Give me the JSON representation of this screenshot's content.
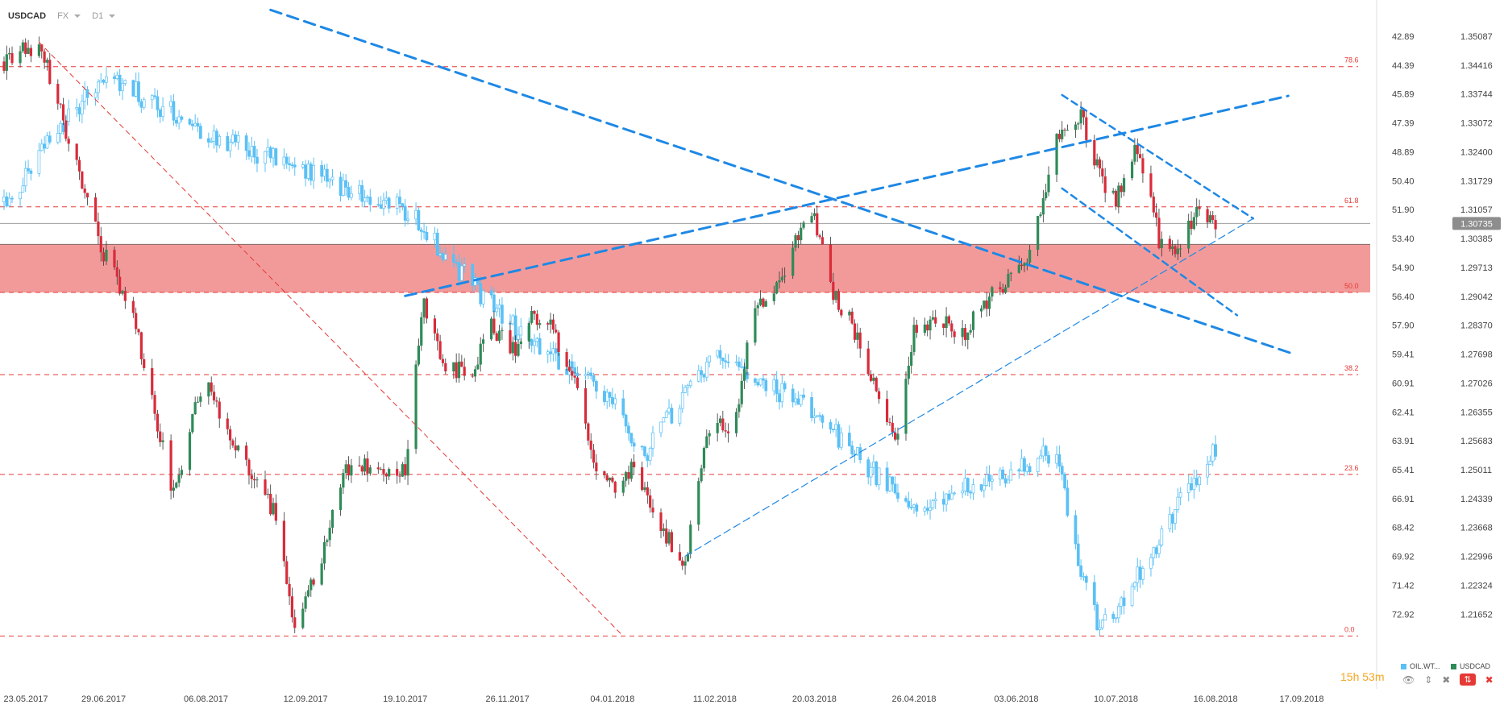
{
  "header": {
    "symbol": "USDCAD",
    "market": "FX",
    "interval": "D1"
  },
  "current_price": "1.30735",
  "timer": {
    "hours": "15h",
    "minutes": "53m"
  },
  "legend": [
    {
      "label": "OIL.WT...",
      "color": "#5bc0f5"
    },
    {
      "label": "USDCAD",
      "color": "#2e8b57"
    }
  ],
  "colors": {
    "bull": "#2e8b57",
    "bear": "#d92b3a",
    "oil": "#5bc0f5",
    "trend": "#1e88e5",
    "fib": "#e53935",
    "zone": "#ee7d7d",
    "price_line": "#9e9e9e"
  },
  "chart_data": {
    "type": "candlestick",
    "x_ticks": [
      "23.05.2017",
      "29.06.2017",
      "06.08.2017",
      "12.09.2017",
      "19.10.2017",
      "26.11.2017",
      "04.01.2018",
      "11.02.2018",
      "20.03.2018",
      "26.04.2018",
      "03.06.2018",
      "10.07.2018",
      "16.08.2018",
      "17.09.2018"
    ],
    "right_axis_usdcad": [
      "1.35087",
      "1.34416",
      "1.33744",
      "1.33072",
      "1.32400",
      "1.31729",
      "1.31057",
      "1.30385",
      "1.29713",
      "1.29042",
      "1.28370",
      "1.27698",
      "1.27026",
      "1.26355",
      "1.25683",
      "1.25011",
      "1.24339",
      "1.23668",
      "1.22996",
      "1.22324",
      "1.21652"
    ],
    "left_axis_oil": [
      "42.89",
      "44.39",
      "45.89",
      "47.39",
      "48.89",
      "50.40",
      "51.90",
      "53.40",
      "54.90",
      "56.40",
      "57.90",
      "59.41",
      "60.91",
      "62.41",
      "63.91",
      "65.41",
      "66.91",
      "68.42",
      "69.92",
      "71.42",
      "72.92"
    ],
    "fibonacci_levels": [
      {
        "label": "78.6",
        "price": 1.3438
      },
      {
        "label": "61.8",
        "price": 1.3112
      },
      {
        "label": "50.0",
        "price": 1.2913
      },
      {
        "label": "38.2",
        "price": 1.2722
      },
      {
        "label": "23.6",
        "price": 1.249
      },
      {
        "label": "0.0",
        "price": 1.2114
      }
    ],
    "resistance_zone": {
      "from": 1.2913,
      "to": 1.3025
    },
    "usdcad_pivots": [
      [
        "23.05.2017",
        1.345
      ],
      [
        "05.06.2017",
        1.3495
      ],
      [
        "29.06.2017",
        1.3005
      ],
      [
        "10.07.2017",
        1.2855
      ],
      [
        "25.07.2017",
        1.2445
      ],
      [
        "01.08.2017",
        1.262
      ],
      [
        "06.08.2017",
        1.271
      ],
      [
        "18.08.2017",
        1.254
      ],
      [
        "01.09.2017",
        1.2395
      ],
      [
        "08.09.2017",
        1.2115
      ],
      [
        "20.09.2017",
        1.2335
      ],
      [
        "27.09.2017",
        1.251
      ],
      [
        "19.10.2017",
        1.2505
      ],
      [
        "26.10.2017",
        1.289
      ],
      [
        "02.11.2017",
        1.2748
      ],
      [
        "12.11.2017",
        1.2725
      ],
      [
        "20.11.2017",
        1.283
      ],
      [
        "30.11.2017",
        1.2778
      ],
      [
        "05.12.2017",
        1.2868
      ],
      [
        "13.12.2017",
        1.2824
      ],
      [
        "20.12.2017",
        1.2725
      ],
      [
        "28.12.2017",
        1.2528
      ],
      [
        "04.01.2018",
        1.2455
      ],
      [
        "11.01.2018",
        1.2505
      ],
      [
        "22.01.2018",
        1.2358
      ],
      [
        "31.01.2018",
        1.2285
      ],
      [
        "09.02.2018",
        1.2608
      ],
      [
        "18.02.2018",
        1.2585
      ],
      [
        "25.02.2018",
        1.2875
      ],
      [
        "06.03.2018",
        1.2928
      ],
      [
        "16.03.2018",
        1.3075
      ],
      [
        "20.03.2018",
        1.3098
      ],
      [
        "26.03.2018",
        1.2918
      ],
      [
        "03.04.2018",
        1.2838
      ],
      [
        "12.04.2018",
        1.2686
      ],
      [
        "19.04.2018",
        1.2552
      ],
      [
        "26.04.2018",
        1.2832
      ],
      [
        "06.05.2018",
        1.2858
      ],
      [
        "13.05.2018",
        1.2798
      ],
      [
        "22.05.2018",
        1.2888
      ],
      [
        "31.05.2018",
        1.2948
      ],
      [
        "08.06.2018",
        1.2992
      ],
      [
        "18.06.2018",
        1.3265
      ],
      [
        "27.06.2018",
        1.3325
      ],
      [
        "04.07.2018",
        1.3185
      ],
      [
        "10.07.2018",
        1.3128
      ],
      [
        "18.07.2018",
        1.3252
      ],
      [
        "26.07.2018",
        1.3038
      ],
      [
        "01.08.2018",
        1.2992
      ],
      [
        "10.08.2018",
        1.3118
      ],
      [
        "16.08.2018",
        1.3073
      ]
    ],
    "oil_pivots": [
      [
        "23.05.2017",
        51.5
      ],
      [
        "29.06.2017",
        44.9
      ],
      [
        "06.08.2017",
        47.9
      ],
      [
        "12.09.2017",
        49.9
      ],
      [
        "19.10.2017",
        51.9
      ],
      [
        "26.11.2017",
        57.8
      ],
      [
        "04.01.2018",
        61.8
      ],
      [
        "15.01.2018",
        64.8
      ],
      [
        "11.02.2018",
        59.3
      ],
      [
        "20.03.2018",
        62.5
      ],
      [
        "26.04.2018",
        67.5
      ],
      [
        "03.06.2018",
        65.4
      ],
      [
        "18.06.2018",
        64.4
      ],
      [
        "26.06.2018",
        70.5
      ],
      [
        "04.07.2018",
        73.8
      ],
      [
        "10.07.2018",
        72.9
      ],
      [
        "26.07.2018",
        69.0
      ],
      [
        "16.08.2018",
        64.2
      ]
    ]
  }
}
